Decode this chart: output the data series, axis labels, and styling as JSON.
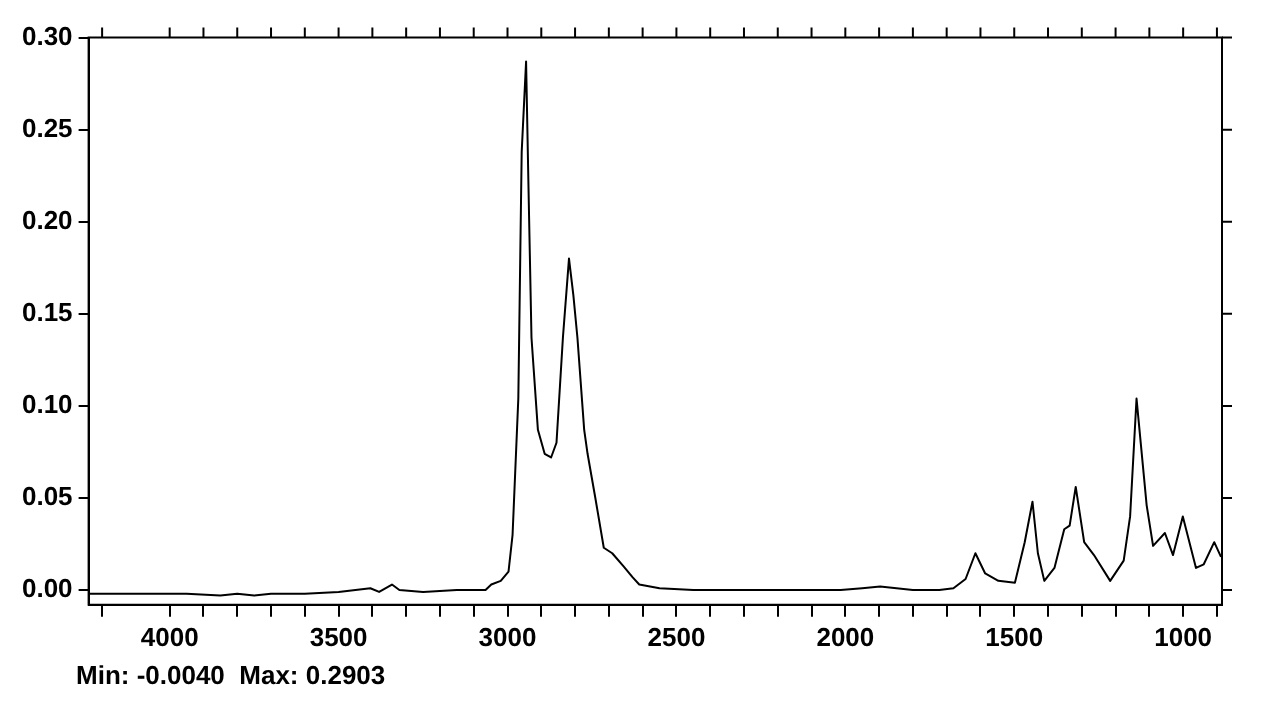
{
  "chart_data": {
    "type": "line",
    "color": "#000000",
    "marker": "none",
    "grid": false,
    "legend": false,
    "x": [
      4240,
      4100,
      3950,
      3850,
      3800,
      3750,
      3700,
      3600,
      3500,
      3450,
      3406,
      3380,
      3342,
      3320,
      3250,
      3150,
      3065,
      3048,
      3020,
      2997,
      2985,
      2968,
      2958,
      2945,
      2938,
      2929,
      2910,
      2890,
      2871,
      2855,
      2836,
      2818,
      2805,
      2793,
      2773,
      2763,
      2740,
      2715,
      2690,
      2657,
      2630,
      2610,
      2550,
      2450,
      2300,
      2150,
      2014,
      1950,
      1897,
      1800,
      1722,
      1680,
      1644,
      1615,
      1586,
      1547,
      1498,
      1469,
      1446,
      1430,
      1411,
      1381,
      1352,
      1336,
      1318,
      1293,
      1264,
      1216,
      1176,
      1157,
      1138,
      1108,
      1089,
      1054,
      1030,
      1001,
      962,
      939,
      908,
      888
    ],
    "values": [
      -0.002,
      -0.002,
      -0.002,
      -0.003,
      -0.002,
      -0.003,
      -0.002,
      -0.002,
      -0.001,
      0.0,
      0.001,
      -0.001,
      0.003,
      0.0,
      -0.001,
      0.0,
      0.0,
      0.003,
      0.005,
      0.01,
      0.03,
      0.104,
      0.238,
      0.287,
      0.22,
      0.137,
      0.087,
      0.074,
      0.072,
      0.08,
      0.137,
      0.18,
      0.16,
      0.137,
      0.087,
      0.074,
      0.05,
      0.023,
      0.02,
      0.013,
      0.007,
      0.003,
      0.001,
      0.0,
      0.0,
      0.0,
      0.0,
      0.001,
      0.002,
      0.0,
      0.0,
      0.001,
      0.006,
      0.02,
      0.009,
      0.005,
      0.004,
      0.026,
      0.048,
      0.02,
      0.005,
      0.012,
      0.033,
      0.035,
      0.056,
      0.026,
      0.019,
      0.005,
      0.016,
      0.04,
      0.104,
      0.046,
      0.024,
      0.031,
      0.019,
      0.04,
      0.012,
      0.014,
      0.026,
      0.018
    ],
    "xlim": [
      4240,
      885
    ],
    "ylim": [
      -0.008,
      0.3
    ],
    "xticks": [
      {
        "value": 4200,
        "label": null
      },
      4000,
      {
        "value": 3900,
        "label": null
      },
      {
        "value": 3800,
        "label": null
      },
      {
        "value": 3700,
        "label": null
      },
      {
        "value": 3600,
        "label": null
      },
      3500,
      {
        "value": 3400,
        "label": null
      },
      {
        "value": 3300,
        "label": null
      },
      {
        "value": 3200,
        "label": null
      },
      {
        "value": 3100,
        "label": null
      },
      3000,
      {
        "value": 2900,
        "label": null
      },
      {
        "value": 2800,
        "label": null
      },
      {
        "value": 2700,
        "label": null
      },
      {
        "value": 2600,
        "label": null
      },
      2500,
      {
        "value": 2400,
        "label": null
      },
      {
        "value": 2300,
        "label": null
      },
      {
        "value": 2200,
        "label": null
      },
      {
        "value": 2100,
        "label": null
      },
      2000,
      {
        "value": 1900,
        "label": null
      },
      {
        "value": 1800,
        "label": null
      },
      {
        "value": 1700,
        "label": null
      },
      {
        "value": 1600,
        "label": null
      },
      1500,
      {
        "value": 1400,
        "label": null
      },
      {
        "value": 1300,
        "label": null
      },
      {
        "value": 1200,
        "label": null
      },
      {
        "value": 1100,
        "label": null
      },
      1000,
      {
        "value": 900,
        "label": null
      }
    ],
    "yticks": [
      {
        "value": 0,
        "label": "0.00"
      },
      {
        "value": 0.05,
        "label": "0.05"
      },
      {
        "value": 0.1,
        "label": "0.10"
      },
      {
        "value": 0.15,
        "label": "0.15"
      },
      {
        "value": 0.2,
        "label": "0.20"
      },
      {
        "value": 0.25,
        "label": "0.25"
      },
      {
        "value": 0.3,
        "label": "0.30"
      }
    ],
    "annotations": [
      "Min: -0.0040  Max: 0.2903"
    ]
  }
}
